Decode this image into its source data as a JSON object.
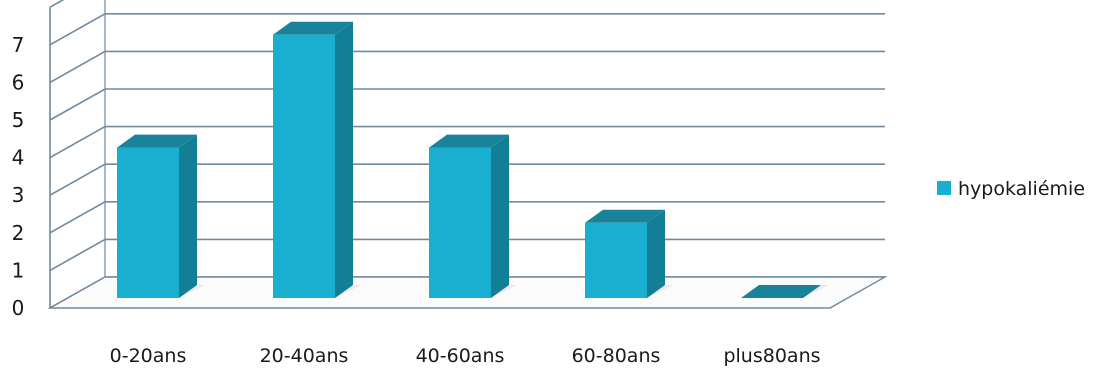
{
  "chart_data": {
    "type": "bar",
    "categories": [
      "0-20ans",
      "20-40ans",
      "40-60ans",
      "60-80ans",
      "plus80ans"
    ],
    "series": [
      {
        "name": "hypokaliémie",
        "values": [
          4,
          7,
          4,
          2,
          0
        ]
      }
    ],
    "ylim": [
      0,
      7
    ],
    "yticks": [
      0,
      1,
      2,
      3,
      4,
      5,
      6,
      7
    ],
    "grid": true,
    "legend_position": "right",
    "three_d": true,
    "colors": {
      "bar_front": "#1AAFD0",
      "bar_side": "#127F96",
      "bar_top": "#18839A",
      "grid": "#6F8AA0",
      "floor_shadow": "#d9d9d9"
    }
  }
}
